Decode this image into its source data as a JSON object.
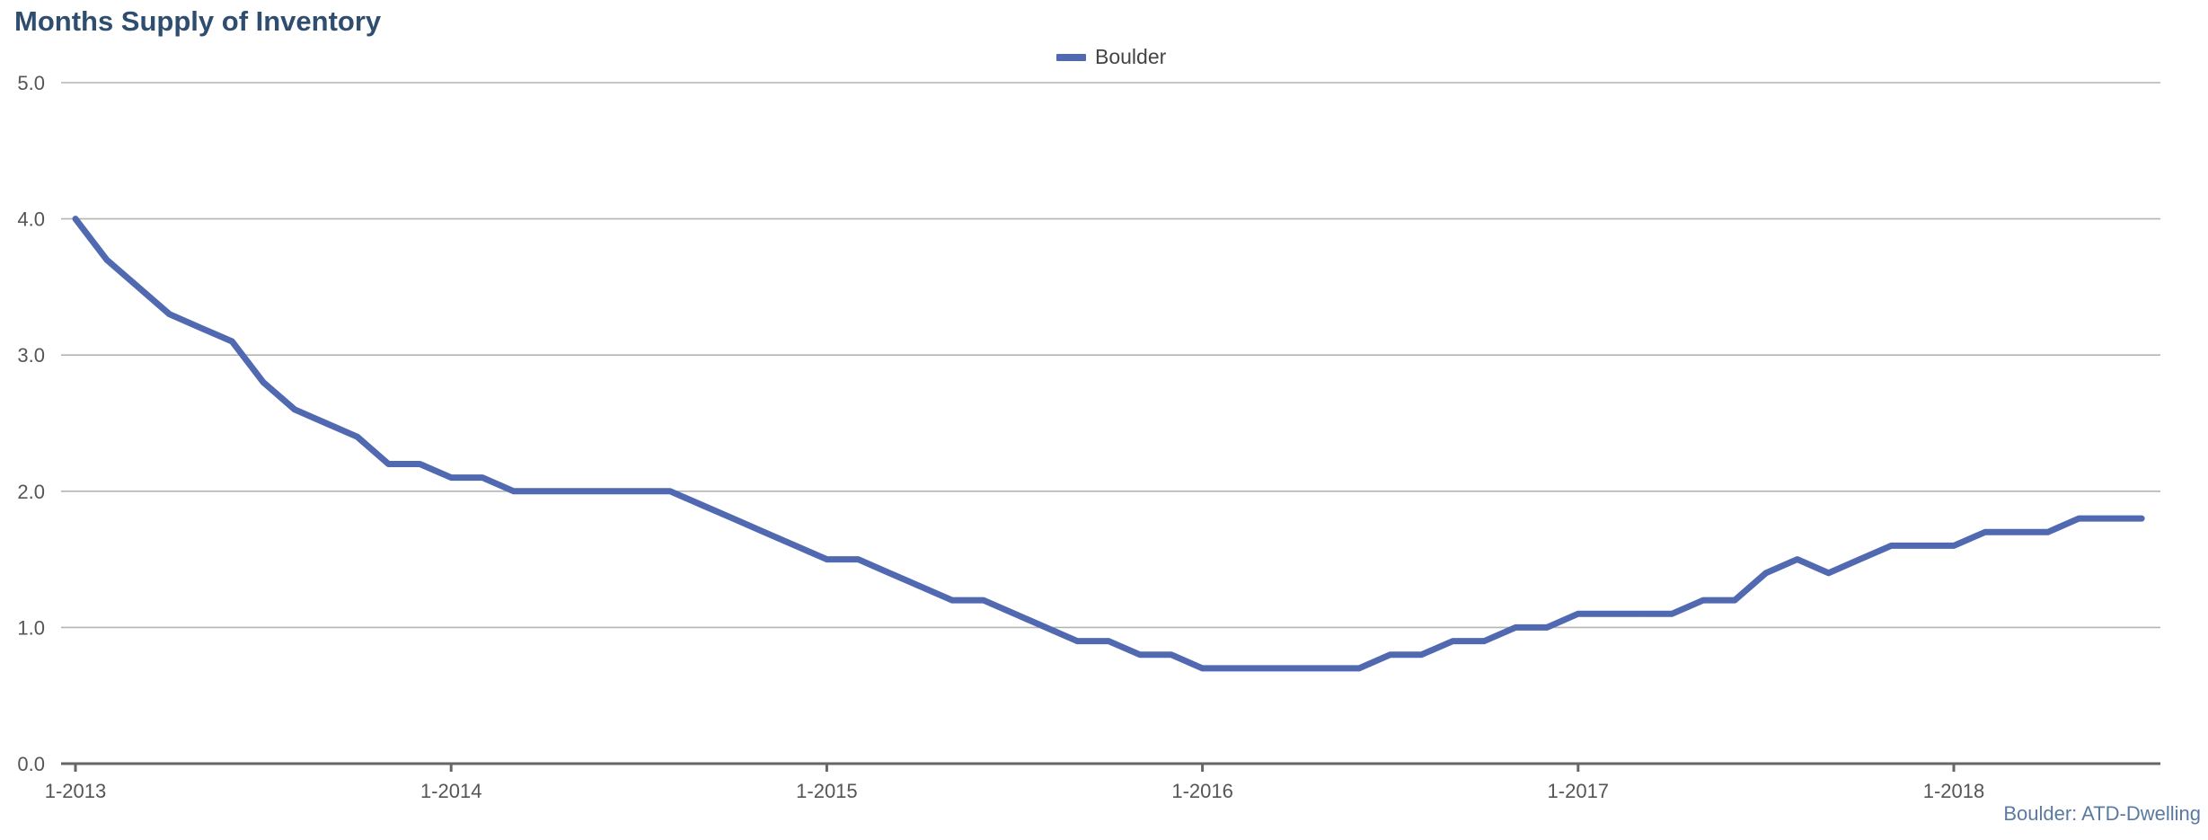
{
  "title": "Months Supply of Inventory",
  "source_note": "Boulder: ATD-Dwelling",
  "colors": {
    "series": "#5169b1",
    "title": "#2f4d6e",
    "grid": "#b4b4b4",
    "axis": "#666666"
  },
  "chart_data": {
    "type": "line",
    "title": "Months Supply of Inventory",
    "xlabel": "",
    "ylabel": "",
    "ylim": [
      0,
      5
    ],
    "yticks": [
      "0.0",
      "1.0",
      "2.0",
      "3.0",
      "4.0",
      "5.0"
    ],
    "xticks": [
      "1-2013",
      "1-2014",
      "1-2015",
      "1-2016",
      "1-2017",
      "1-2018"
    ],
    "x_range": [
      "2013-01",
      "2018-07"
    ],
    "grid": true,
    "legend_position": "top-center",
    "x": [
      "2013-01",
      "2013-02",
      "2013-03",
      "2013-04",
      "2013-05",
      "2013-06",
      "2013-07",
      "2013-08",
      "2013-09",
      "2013-10",
      "2013-11",
      "2013-12",
      "2014-01",
      "2014-02",
      "2014-03",
      "2014-04",
      "2014-05",
      "2014-06",
      "2014-07",
      "2014-08",
      "2014-09",
      "2014-10",
      "2014-11",
      "2014-12",
      "2015-01",
      "2015-02",
      "2015-03",
      "2015-04",
      "2015-05",
      "2015-06",
      "2015-07",
      "2015-08",
      "2015-09",
      "2015-10",
      "2015-11",
      "2015-12",
      "2016-01",
      "2016-02",
      "2016-03",
      "2016-04",
      "2016-05",
      "2016-06",
      "2016-07",
      "2016-08",
      "2016-09",
      "2016-10",
      "2016-11",
      "2016-12",
      "2017-01",
      "2017-02",
      "2017-03",
      "2017-04",
      "2017-05",
      "2017-06",
      "2017-07",
      "2017-08",
      "2017-09",
      "2017-10",
      "2017-11",
      "2017-12",
      "2018-01",
      "2018-02",
      "2018-03",
      "2018-04",
      "2018-05",
      "2018-06",
      "2018-07"
    ],
    "series": [
      {
        "name": "Boulder",
        "values": [
          4.0,
          3.7,
          3.5,
          3.3,
          3.2,
          3.1,
          2.8,
          2.6,
          2.5,
          2.4,
          2.2,
          2.2,
          2.1,
          2.1,
          2.0,
          2.0,
          2.0,
          2.0,
          2.0,
          2.0,
          1.9,
          1.8,
          1.7,
          1.6,
          1.5,
          1.5,
          1.4,
          1.3,
          1.2,
          1.2,
          1.1,
          1.0,
          0.9,
          0.9,
          0.8,
          0.8,
          0.7,
          0.7,
          0.7,
          0.7,
          0.7,
          0.7,
          0.8,
          0.8,
          0.9,
          0.9,
          1.0,
          1.0,
          1.1,
          1.1,
          1.1,
          1.1,
          1.2,
          1.2,
          1.4,
          1.5,
          1.4,
          1.5,
          1.6,
          1.6,
          1.6,
          1.7,
          1.7,
          1.7,
          1.8,
          1.8,
          1.8
        ]
      }
    ]
  }
}
